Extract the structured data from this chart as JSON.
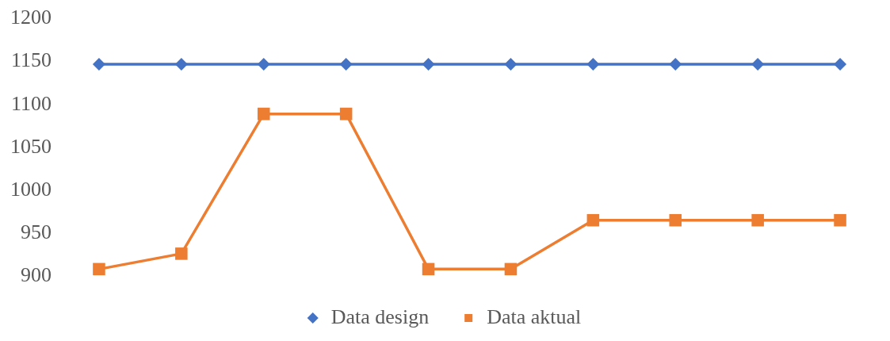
{
  "chart_data": {
    "type": "line",
    "categories": [
      null,
      null,
      null,
      null,
      null,
      null,
      null,
      null,
      null,
      null
    ],
    "series": [
      {
        "name": "Data design",
        "color": "#4472c4",
        "marker": "diamond",
        "values": [
          1147,
          1147,
          1147,
          1147,
          1147,
          1147,
          1147,
          1147,
          1147,
          1147
        ]
      },
      {
        "name": "Data aktual",
        "color": "#ed7d31",
        "marker": "square",
        "values": [
          908,
          926,
          1089,
          1089,
          908,
          908,
          965,
          965,
          965,
          965
        ]
      }
    ],
    "ylim": [
      900,
      1200
    ],
    "yticks": [
      900,
      950,
      1000,
      1050,
      1100,
      1150,
      1200
    ],
    "grid": false,
    "legend": "bottom",
    "tick_labels": "y"
  }
}
